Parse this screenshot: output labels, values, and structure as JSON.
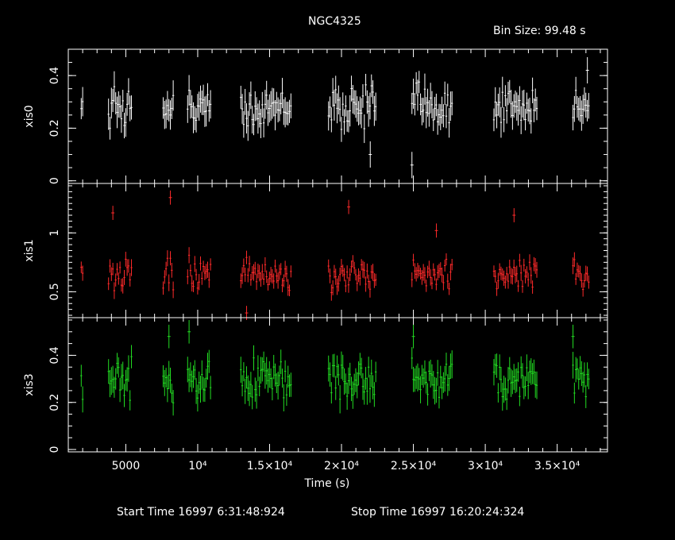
{
  "chart_data": {
    "type": "scatter",
    "title": "NGC4325",
    "bin_size_label": "Bin Size: 99.48 s",
    "xlabel": "Time (s)",
    "xlim": [
      1000,
      38500
    ],
    "x_tick_labels": [
      "5000",
      "10⁴",
      "1.5×10⁴",
      "2×10⁴",
      "2.5×10⁴",
      "3×10⁴",
      "3.5×10⁴"
    ],
    "x_tick_values": [
      5000,
      10000,
      15000,
      20000,
      25000,
      30000,
      35000
    ],
    "start_time": "Start Time 16997  6:31:48:924",
    "stop_time": "Stop Time 16997 16:20:24:324",
    "segments": [
      [
        1900,
        2000
      ],
      [
        3800,
        5400
      ],
      [
        7600,
        8300
      ],
      [
        9300,
        10900
      ],
      [
        13000,
        16500
      ],
      [
        19100,
        22400
      ],
      [
        24900,
        27700
      ],
      [
        30600,
        33600
      ],
      [
        36100,
        37200
      ]
    ],
    "panels": [
      {
        "name": "xis0",
        "ylabel": "xis0",
        "color": "#ffffff",
        "ylim": [
          -0.01,
          0.5
        ],
        "ticks": [
          0,
          0.2,
          0.4
        ],
        "tick_labels": [
          "0",
          "0.2",
          "0.4"
        ],
        "mean": 0.28,
        "sigma": 0.055,
        "err": 0.05,
        "outliers": [
          [
            22000,
            0.1
          ],
          [
            24900,
            0.06
          ],
          [
            37100,
            0.42
          ]
        ]
      },
      {
        "name": "xis1",
        "ylabel": "xis1",
        "color": "#ff2a2a",
        "ylim": [
          0.28,
          1.42
        ],
        "ticks": [
          0.5,
          1
        ],
        "tick_labels": [
          "0.5",
          "1"
        ],
        "mean": 0.64,
        "sigma": 0.09,
        "err": 0.06,
        "outliers": [
          [
            4100,
            1.17
          ],
          [
            8100,
            1.3
          ],
          [
            20500,
            1.22
          ],
          [
            26600,
            1.02
          ],
          [
            32000,
            1.15
          ],
          [
            13400,
            0.32
          ]
        ]
      },
      {
        "name": "xis3",
        "ylabel": "xis3",
        "color": "#22dd22",
        "ylim": [
          -0.01,
          0.56
        ],
        "ticks": [
          0,
          0.2,
          0.4
        ],
        "tick_labels": [
          "0",
          "0.2",
          "0.4"
        ],
        "mean": 0.3,
        "sigma": 0.06,
        "err": 0.05,
        "outliers": [
          [
            8000,
            0.48
          ],
          [
            9400,
            0.5
          ],
          [
            25000,
            0.48
          ],
          [
            36100,
            0.48
          ]
        ]
      }
    ]
  }
}
